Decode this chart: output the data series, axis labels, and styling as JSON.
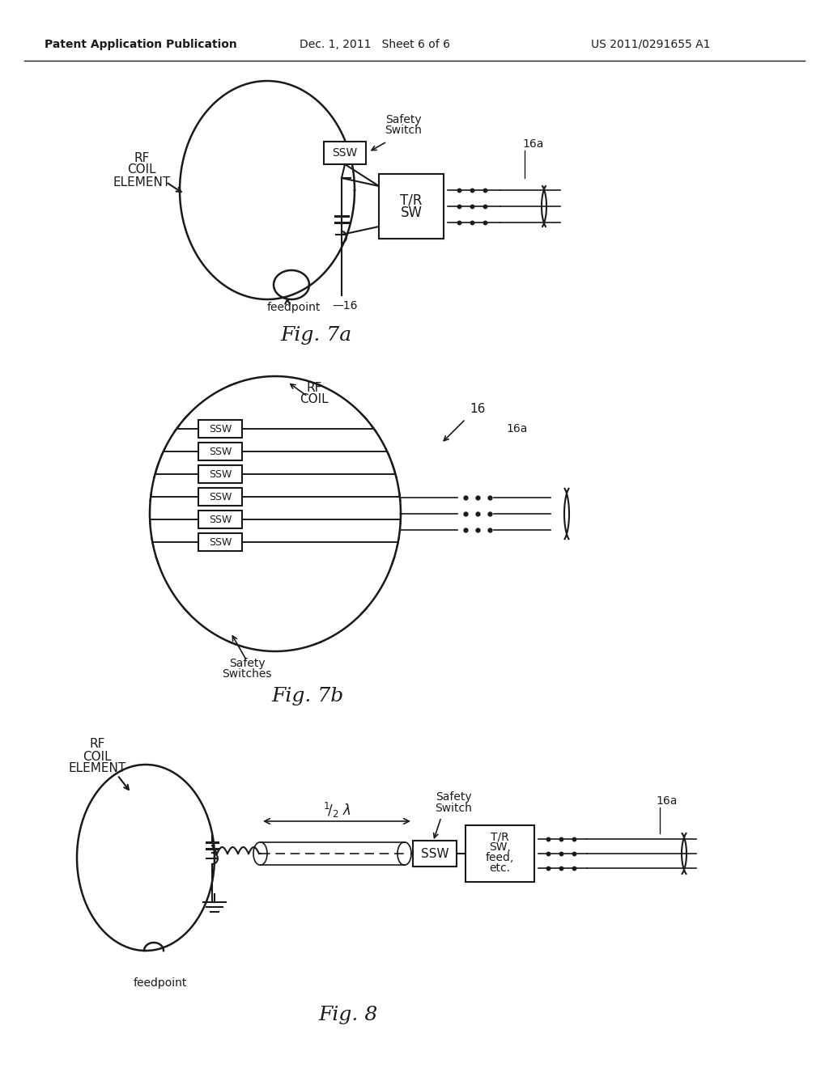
{
  "bg_color": "#ffffff",
  "line_color": "#1a1a1a",
  "header_left": "Patent Application Publication",
  "header_mid": "Dec. 1, 2011   Sheet 6 of 6",
  "header_right": "US 2011/0291655 A1",
  "fig7a_label": "Fig. 7a",
  "fig7b_label": "Fig. 7b",
  "fig8_label": "Fig. 8"
}
